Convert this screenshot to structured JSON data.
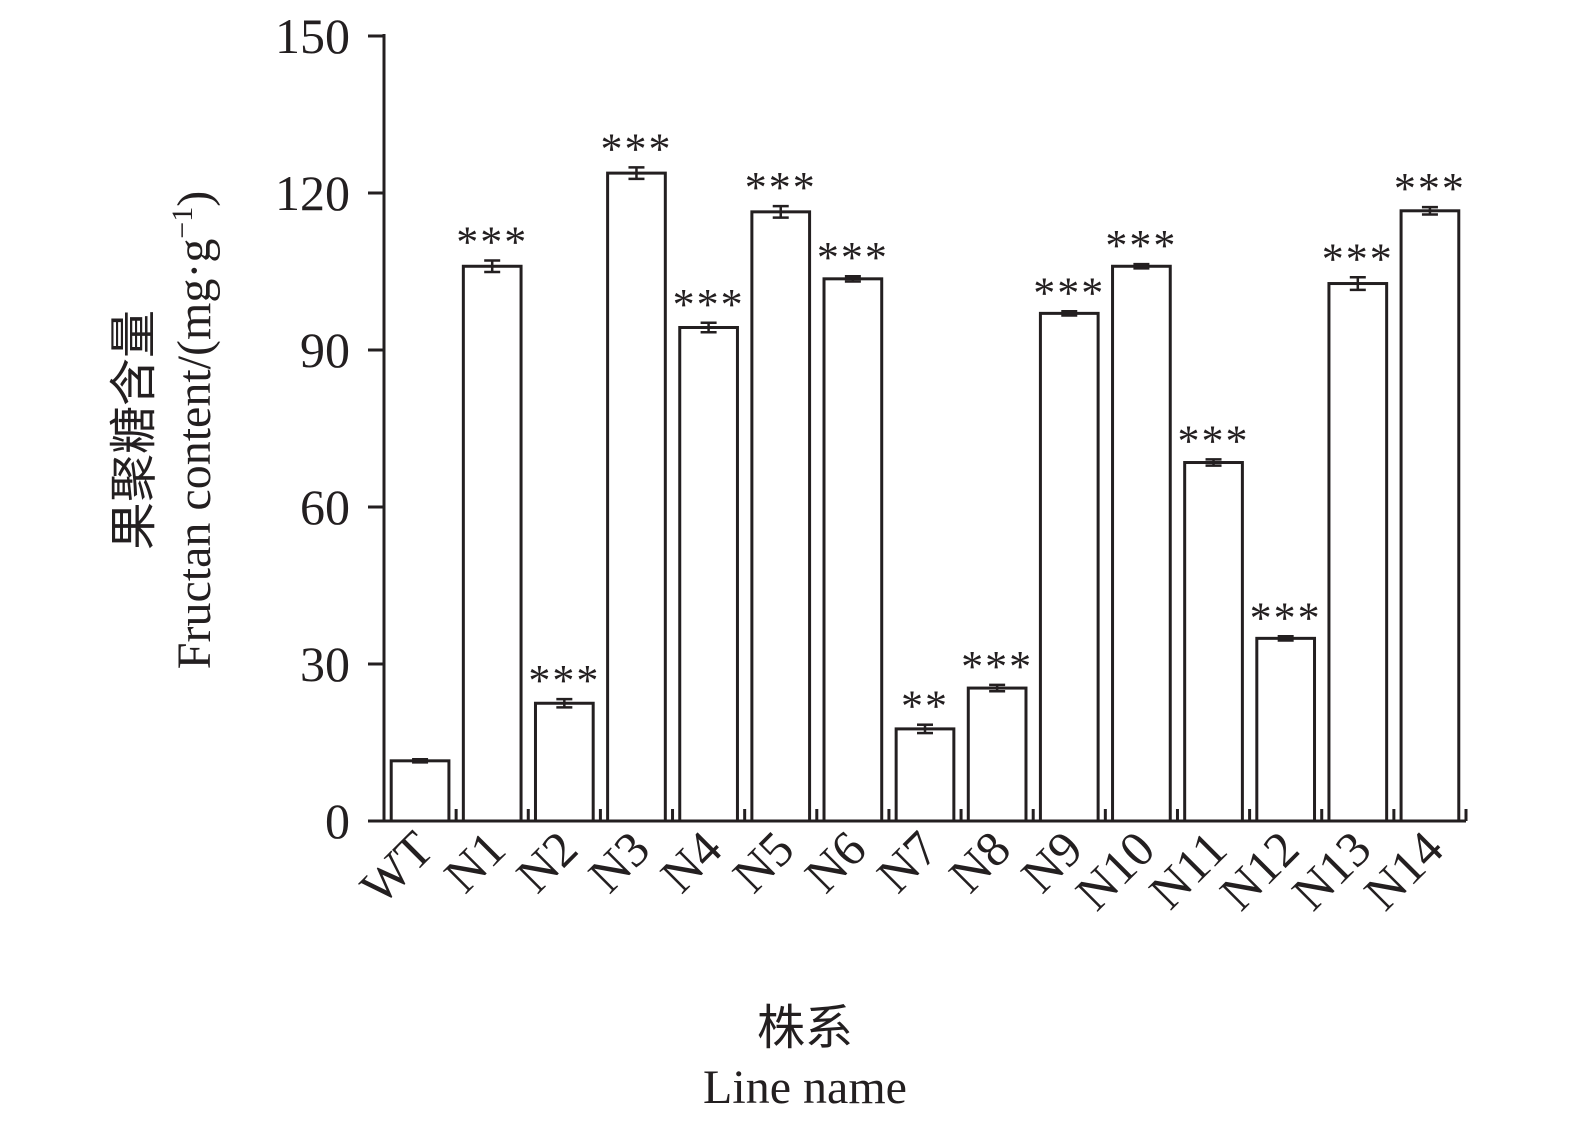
{
  "chart_data": {
    "type": "bar",
    "categories": [
      "WT",
      "N1",
      "N2",
      "N3",
      "N4",
      "N5",
      "N6",
      "N7",
      "N8",
      "N9",
      "N10",
      "N11",
      "N12",
      "N13",
      "N14"
    ],
    "values": [
      11.5,
      106,
      22.5,
      123.8,
      94.3,
      116.4,
      103.6,
      17.6,
      25.4,
      97,
      106,
      68.5,
      34.9,
      102.7,
      116.6
    ],
    "errors": [
      0.3,
      1.1,
      0.8,
      1.1,
      0.9,
      1.1,
      0.5,
      0.8,
      0.6,
      0.4,
      0.4,
      0.6,
      0.4,
      1.2,
      0.7
    ],
    "significance": [
      "",
      "***",
      "***",
      "***",
      "***",
      "***",
      "***",
      "**",
      "***",
      "***",
      "***",
      "***",
      "***",
      "***",
      "***"
    ],
    "ylim": [
      0,
      150
    ],
    "yticks": [
      "0",
      "30",
      "60",
      "90",
      "120",
      "150"
    ],
    "ylabel_cn": "果聚糖含量",
    "ylabel_en_main": "Fructan content/(mg·g",
    "ylabel_en_sup": "−1",
    "ylabel_en_close": ")",
    "xlabel_cn": "株系",
    "xlabel_en": "Line name",
    "grid": false,
    "legend": "none",
    "bar_fill": "#ffffff",
    "bar_stroke": "#231f20"
  }
}
